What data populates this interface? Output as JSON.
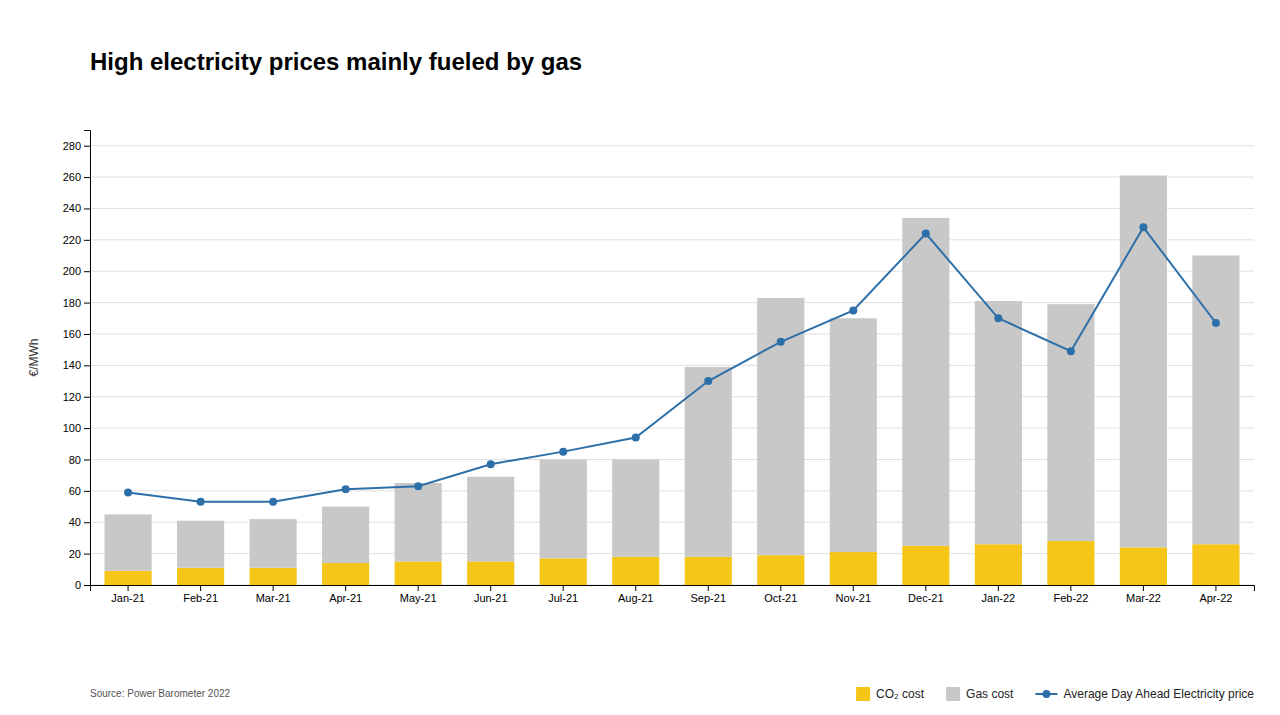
{
  "chart_data": {
    "type": "bar",
    "stacked": true,
    "title": "High electricity prices mainly fueled by gas",
    "ylabel": "€/MWh",
    "source": "Source: Power Barometer 2022",
    "categories": [
      "Jan-21",
      "Feb-21",
      "Mar-21",
      "Apr-21",
      "May-21",
      "Jun-21",
      "Jul-21",
      "Aug-21",
      "Sep-21",
      "Oct-21",
      "Nov-21",
      "Dec-21",
      "Jan-22",
      "Feb-22",
      "Mar-22",
      "Apr-22"
    ],
    "series": [
      {
        "name": "CO₂ cost",
        "type": "bar",
        "color": "#f5c518",
        "values": [
          9,
          11,
          11,
          14,
          15,
          15,
          17,
          18,
          18,
          19,
          21,
          25,
          26,
          28,
          24,
          26
        ]
      },
      {
        "name": "Gas cost",
        "type": "bar",
        "color": "#c8c8c8",
        "values": [
          36,
          30,
          31,
          36,
          50,
          54,
          63,
          62,
          121,
          164,
          149,
          209,
          155,
          151,
          237,
          184
        ]
      },
      {
        "name": "Average Day Ahead Electricity price",
        "type": "line",
        "color": "#2d6fa8",
        "marker": "circle",
        "line_style": "solid",
        "values": [
          59,
          53,
          53,
          61,
          63,
          77,
          85,
          94,
          130,
          155,
          175,
          224,
          170,
          149,
          228,
          167
        ]
      }
    ],
    "ylim": [
      0,
      290
    ],
    "yticks": [
      0,
      20,
      40,
      60,
      80,
      100,
      120,
      140,
      160,
      180,
      200,
      220,
      240,
      260,
      280
    ],
    "grid": true,
    "legend": "bottom-right"
  }
}
